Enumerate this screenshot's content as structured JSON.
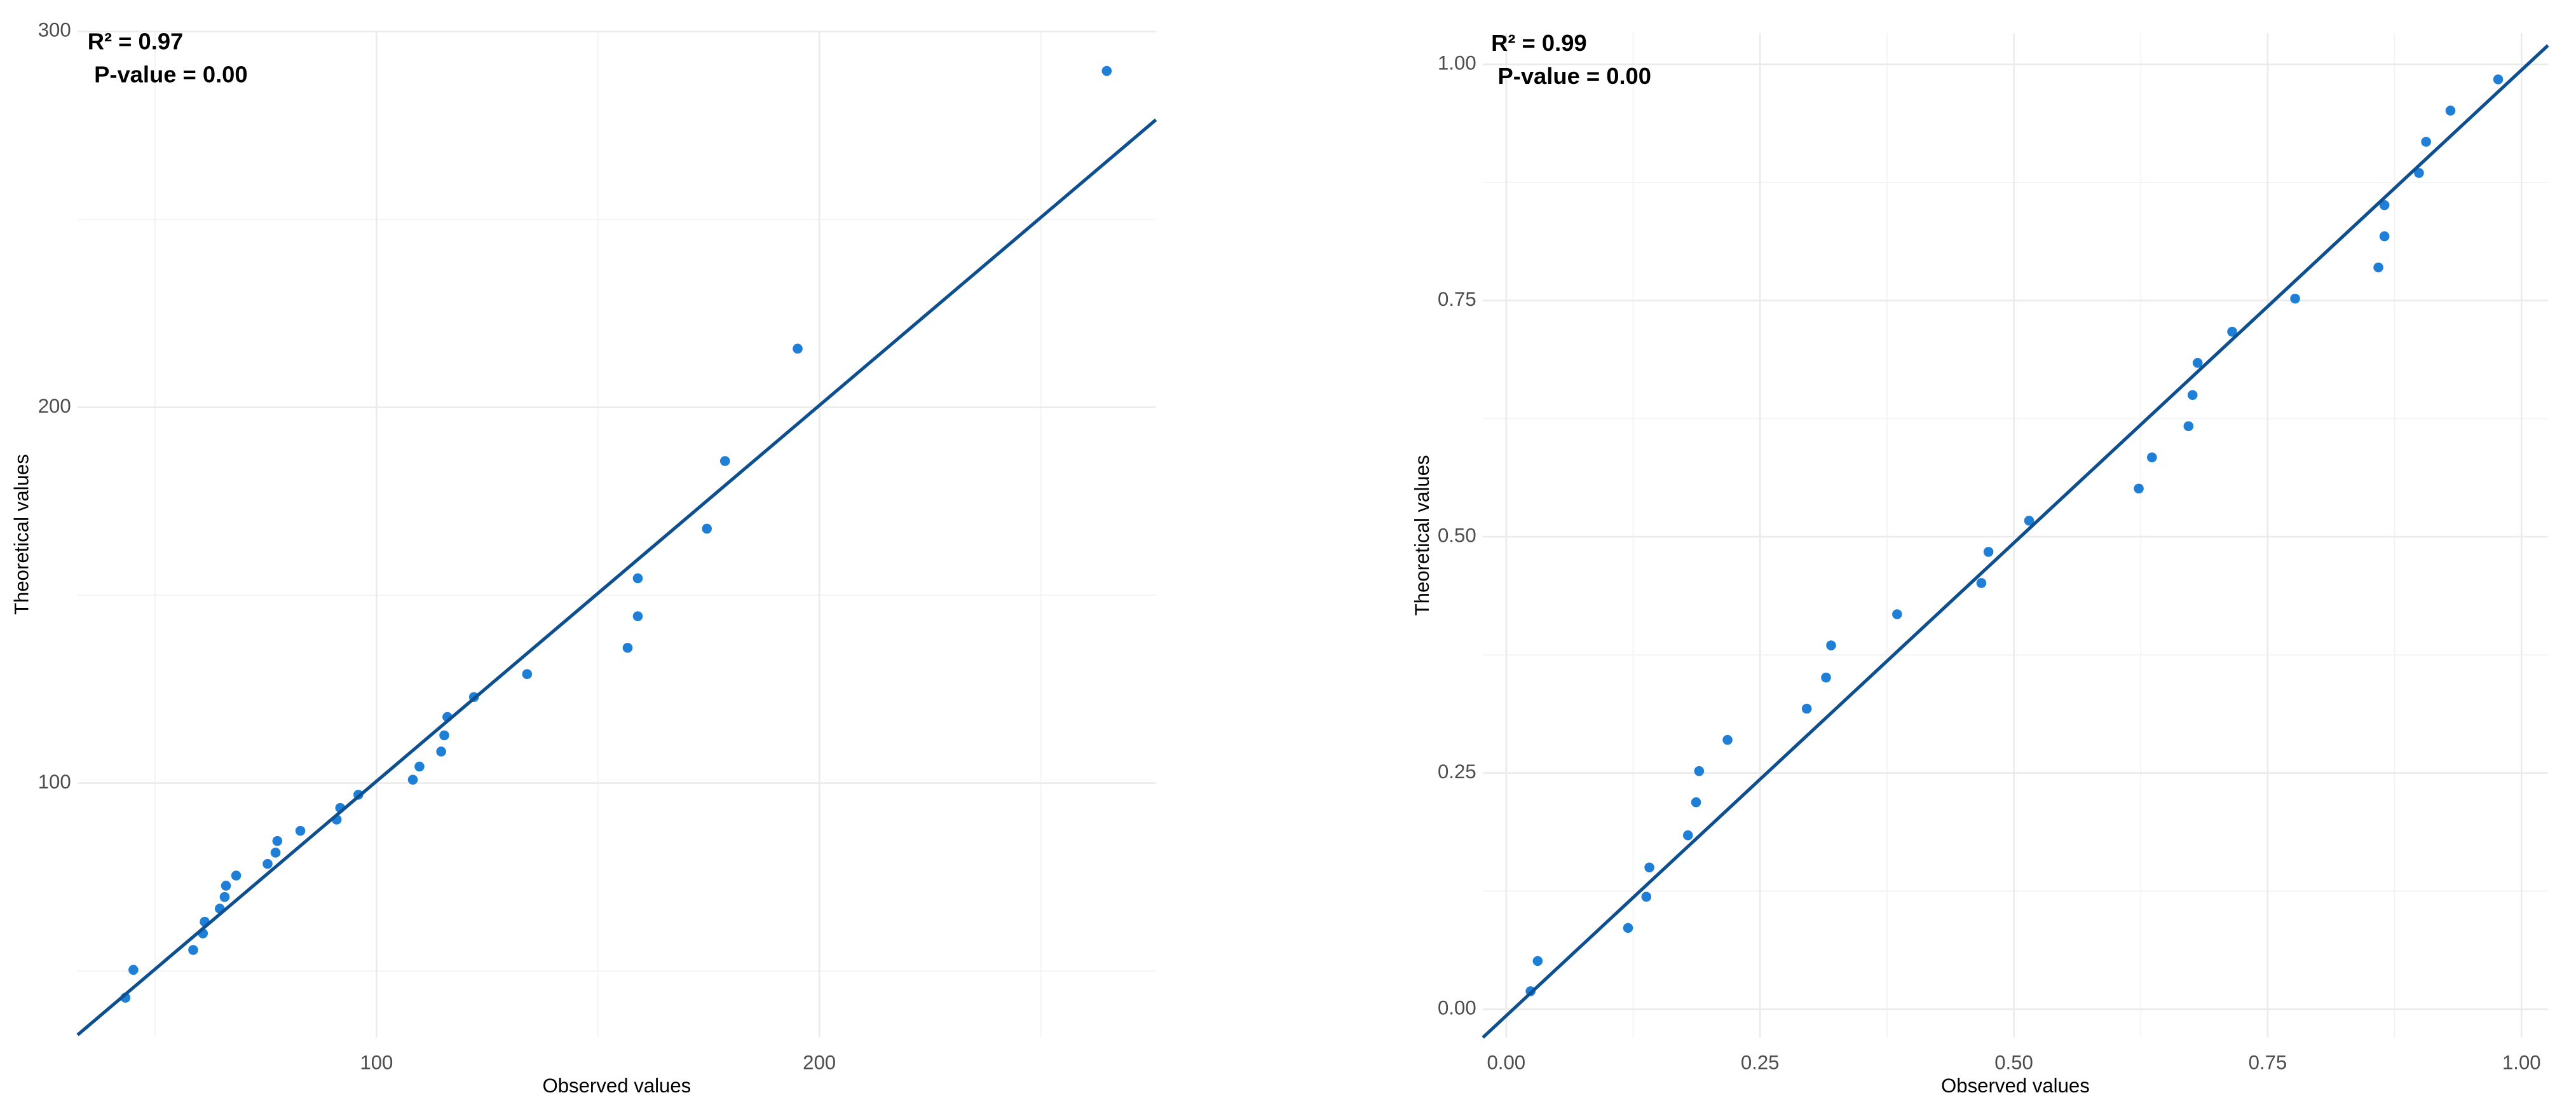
{
  "chart_data": [
    {
      "type": "scatter",
      "annotations": [
        "R² = 0.97",
        "P-value = 0.00"
      ],
      "xlabel": "Observed values",
      "ylabel": "Theoretical values",
      "xlim": [
        32.5,
        276
      ],
      "ylim": [
        32.3,
        300
      ],
      "xticks": [
        100,
        200
      ],
      "yticks": [
        100,
        200,
        300
      ],
      "x_minor_grid": [
        50,
        150,
        250
      ],
      "y_minor_grid": [
        50,
        150,
        250
      ],
      "grid": true,
      "series": [
        {
          "color": "#1f7fd6",
          "x": [
            43.3,
            45.1,
            58.6,
            60.8,
            61.2,
            64.6,
            65.7,
            66.0,
            68.3,
            75.4,
            77.2,
            77.6,
            82.8,
            91.0,
            91.8,
            95.9,
            108.2,
            109.7,
            114.6,
            115.3,
            116.0,
            122.0,
            134.0,
            156.7,
            159.0,
            159.0,
            174.6,
            178.7,
            195.1,
            264.9
          ],
          "values": [
            42.9,
            50.3,
            55.6,
            60.0,
            63.1,
            66.6,
            69.7,
            72.7,
            75.4,
            78.5,
            81.5,
            84.6,
            87.3,
            90.3,
            93.4,
            96.9,
            100.9,
            104.4,
            108.4,
            112.7,
            117.6,
            122.9,
            129.0,
            136.0,
            144.4,
            154.5,
            167.7,
            185.7,
            215.6,
            289.5
          ]
        }
      ],
      "fit_line": {
        "color": "#0d4f8f",
        "x": [
          32.5,
          276
        ],
        "values": [
          33,
          276.5
        ]
      }
    },
    {
      "type": "scatter",
      "annotations": [
        "R² = 0.99",
        "P-value = 0.00"
      ],
      "xlabel": "Observed values",
      "ylabel": "Theoretical values",
      "xlim": [
        -0.023,
        1.026
      ],
      "ylim": [
        -0.03,
        1.033
      ],
      "xticks": [
        {
          "value": 0,
          "label": "0.00"
        },
        0.25,
        {
          "value": 0.5,
          "label": "0.50"
        },
        0.75,
        {
          "value": 1,
          "label": "1.00"
        }
      ],
      "yticks": [
        {
          "value": 0,
          "label": "0.00"
        },
        0.25,
        {
          "value": 0.5,
          "label": "0.50"
        },
        0.75,
        {
          "value": 1,
          "label": "1.00"
        }
      ],
      "x_minor_grid": [
        0.125,
        0.375,
        0.625,
        0.875
      ],
      "y_minor_grid": [
        0.125,
        0.375,
        0.625,
        0.875
      ],
      "grid": true,
      "series": [
        {
          "color": "#1f7fd6",
          "x": [
            0.024,
            0.031,
            0.12,
            0.138,
            0.141,
            0.179,
            0.187,
            0.19,
            0.218,
            0.296,
            0.315,
            0.32,
            0.385,
            0.468,
            0.475,
            0.515,
            0.623,
            0.636,
            0.672,
            0.676,
            0.681,
            0.715,
            0.777,
            0.859,
            0.865,
            0.865,
            0.899,
            0.906,
            0.93,
            0.977
          ],
          "values": [
            0.019,
            0.051,
            0.086,
            0.119,
            0.15,
            0.184,
            0.219,
            0.252,
            0.285,
            0.318,
            0.351,
            0.385,
            0.418,
            0.451,
            0.484,
            0.517,
            0.551,
            0.584,
            0.617,
            0.65,
            0.684,
            0.717,
            0.752,
            0.785,
            0.818,
            0.851,
            0.885,
            0.918,
            0.951,
            0.984
          ]
        }
      ],
      "fit_line": {
        "color": "#0d4f8f",
        "x": [
          -0.023,
          1.026
        ],
        "values": [
          -0.03,
          1.02
        ]
      }
    }
  ]
}
